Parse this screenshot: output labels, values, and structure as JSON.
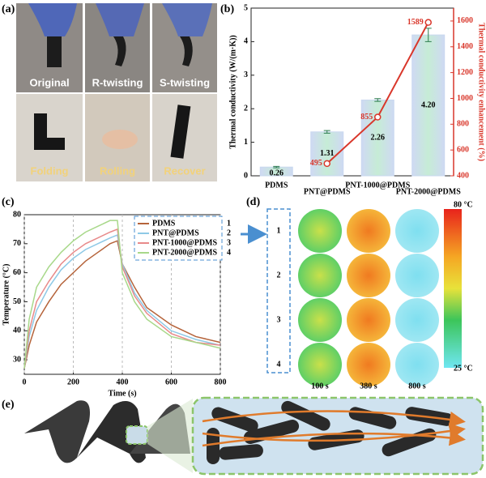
{
  "panel_labels": [
    "(a)",
    "(b)",
    "(c)",
    "(d)",
    "(e)"
  ],
  "photos": {
    "captions": [
      "Original",
      "R-twisting",
      "S-twisting",
      "Folding",
      "Rolling",
      "Recover"
    ]
  },
  "chart_data": [
    {
      "type": "bar",
      "categories": [
        "PDMS",
        "PNT@PDMS",
        "PNT-1000@PDMS",
        "PNT-2000@PDMS"
      ],
      "ylabel": "Thermal conductivity (W/(m·K))",
      "y2label": "Thermal conductivity enhancement (%)",
      "ylim": [
        0,
        5
      ],
      "yticks": [
        0,
        1,
        2,
        3,
        4,
        5
      ],
      "y2lim": [
        400,
        1700
      ],
      "y2ticks": [
        400,
        600,
        800,
        1000,
        1200,
        1400,
        1600
      ],
      "series": [
        {
          "type": "bar",
          "color": "#c9d8ef",
          "values": [
            0.26,
            1.31,
            2.26,
            4.2
          ],
          "errors": [
            0.02,
            0.04,
            0.04,
            0.2
          ],
          "value_labels": [
            "0.26",
            "1.31",
            "2.26",
            "4.20"
          ]
        },
        {
          "type": "line",
          "axis": "y2",
          "color": "#d9372b",
          "values": [
            null,
            495,
            855,
            1589
          ]
        }
      ]
    },
    {
      "type": "line",
      "xlabel": "Time (s)",
      "ylabel": "Temperature (°C)",
      "xlim": [
        0,
        800
      ],
      "xticks": [
        0,
        200,
        400,
        600,
        800
      ],
      "ylim": [
        25,
        80
      ],
      "yticks": [
        30,
        40,
        50,
        60,
        70,
        80
      ],
      "xgrid": true,
      "legend": "upper right",
      "legend_numbers": [
        "1",
        "2",
        "3",
        "4"
      ],
      "x": [
        0,
        20,
        50,
        100,
        150,
        200,
        250,
        300,
        350,
        380,
        400,
        450,
        500,
        600,
        700,
        800
      ],
      "series": [
        {
          "name": "PDMS",
          "color": "#b5633a",
          "values": [
            27,
            35,
            43,
            50,
            56,
            60,
            64,
            67,
            70,
            71,
            63,
            55,
            48,
            42,
            38,
            36
          ]
        },
        {
          "name": "PNT@PDMS",
          "color": "#8ec9e6",
          "values": [
            27,
            38,
            47,
            55,
            61,
            65,
            68,
            70,
            72,
            73,
            63,
            53,
            47,
            40,
            37,
            35
          ]
        },
        {
          "name": "PNT-1000@PDMS",
          "color": "#e88a8a",
          "values": [
            27,
            40,
            50,
            57,
            63,
            67,
            70,
            72,
            74,
            75,
            62,
            52,
            46,
            39,
            36,
            35
          ]
        },
        {
          "name": "PNT-2000@PDMS",
          "color": "#a8d88a",
          "values": [
            27,
            44,
            55,
            62,
            67,
            71,
            74,
            76,
            78,
            78,
            60,
            50,
            44,
            38,
            36,
            34
          ]
        }
      ]
    }
  ],
  "thermal_images": {
    "row_labels": [
      "1",
      "2",
      "3",
      "4"
    ],
    "column_labels": [
      "100 s",
      "380 s",
      "800 s"
    ],
    "colorbar_labels": [
      "80 °C",
      "25 °C"
    ]
  }
}
